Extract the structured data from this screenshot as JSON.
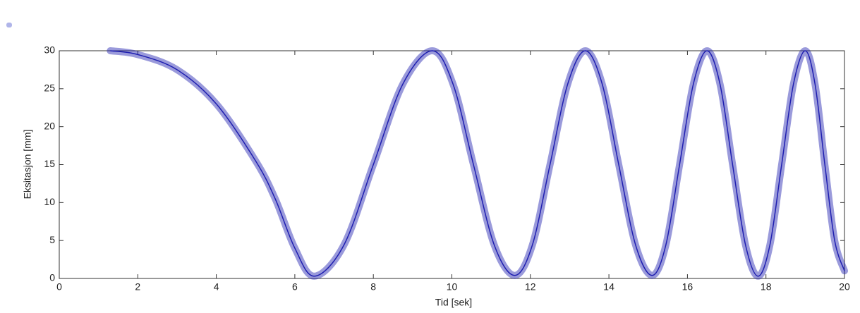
{
  "chart_data": {
    "type": "line",
    "x_label": "Tid [sek]",
    "y_label": "Eksitasjon [mm]",
    "x": [
      1.3,
      2,
      3,
      4,
      5,
      5.5,
      6,
      6.5,
      7.25,
      8,
      8.75,
      9.5,
      10.03,
      10.55,
      11.08,
      11.6,
      12.05,
      12.5,
      12.95,
      13.4,
      13.83,
      14.25,
      14.68,
      15.1,
      15.45,
      15.8,
      16.15,
      16.5,
      16.83,
      17.15,
      17.48,
      17.8,
      18.1,
      18.4,
      18.7,
      19.0,
      19.25,
      19.5,
      19.75,
      20
    ],
    "series": [
      {
        "color": "#1f1fb0",
        "values": [
          30,
          29.5,
          27.5,
          23,
          15.5,
          10.5,
          4,
          0.3,
          4.4,
          15,
          25.6,
          30,
          25.6,
          15,
          4.4,
          0.4,
          4.4,
          15,
          25.6,
          30,
          25.6,
          15,
          4.4,
          0.4,
          4.4,
          15,
          25.6,
          30,
          25.6,
          15,
          4.4,
          0.3,
          4.4,
          15,
          25.6,
          30,
          25.6,
          15,
          5,
          1
        ]
      }
    ],
    "xlim": [
      0,
      20
    ],
    "xticks": [
      0,
      2,
      4,
      6,
      8,
      10,
      12,
      14,
      16,
      18,
      20
    ],
    "ylim": [
      0,
      30
    ],
    "yticks": [
      0,
      5,
      10,
      15,
      20,
      25,
      30
    ]
  }
}
